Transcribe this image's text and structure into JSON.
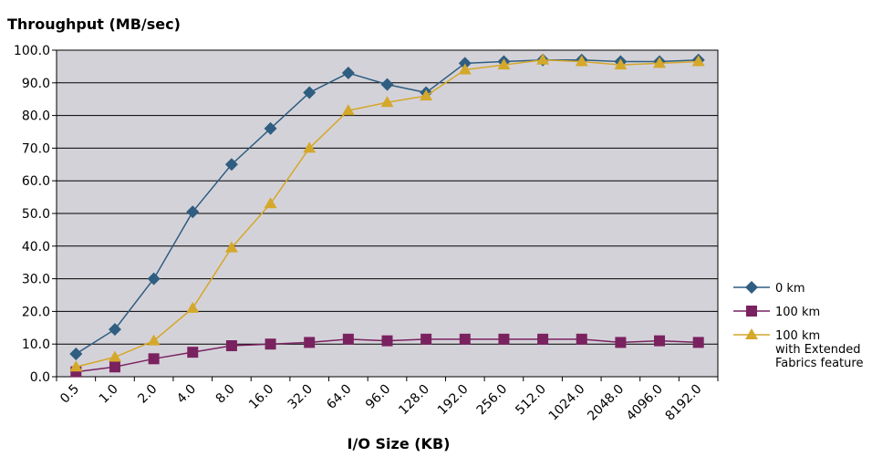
{
  "chart_data": {
    "type": "line",
    "title": "",
    "ylabel": "Throughput (MB/sec)",
    "xlabel": "I/O Size (KB)",
    "ylim": [
      0,
      100
    ],
    "yticks": [
      "0.0",
      "10.0",
      "20.0",
      "30.0",
      "40.0",
      "50.0",
      "60.0",
      "70.0",
      "80.0",
      "90.0",
      "100.0"
    ],
    "categories": [
      "0.5",
      "1.0",
      "2.0",
      "4.0",
      "8.0",
      "16.0",
      "32.0",
      "64.0",
      "96.0",
      "128.0",
      "192.0",
      "256.0",
      "512.0",
      "1024.0",
      "2048.0",
      "4096.0",
      "8192.0"
    ],
    "grid": true,
    "plot_background": "#d4d2d9",
    "legend_position": "right",
    "series": [
      {
        "name": "0 km",
        "marker": "diamond",
        "color": "#2f5e80",
        "values": [
          7.0,
          14.5,
          30.0,
          50.5,
          65.0,
          76.0,
          87.0,
          93.0,
          89.5,
          87.0,
          96.0,
          96.5,
          97.0,
          97.0,
          96.5,
          96.5,
          97.0
        ]
      },
      {
        "name": "100 km",
        "marker": "square",
        "color": "#7a2260",
        "values": [
          1.5,
          3.0,
          5.5,
          7.5,
          9.5,
          10.0,
          10.5,
          11.5,
          11.0,
          11.5,
          11.5,
          11.5,
          11.5,
          11.5,
          10.5,
          11.0,
          10.5
        ]
      },
      {
        "name": "100 km",
        "name_line2": "with Extended",
        "name_line3": "Fabrics feature",
        "marker": "triangle",
        "color": "#d4a82a",
        "values": [
          3.0,
          6.0,
          11.0,
          21.0,
          39.5,
          53.0,
          70.0,
          81.5,
          84.0,
          86.0,
          94.0,
          95.5,
          97.0,
          96.5,
          95.5,
          96.0,
          96.5
        ]
      }
    ]
  }
}
